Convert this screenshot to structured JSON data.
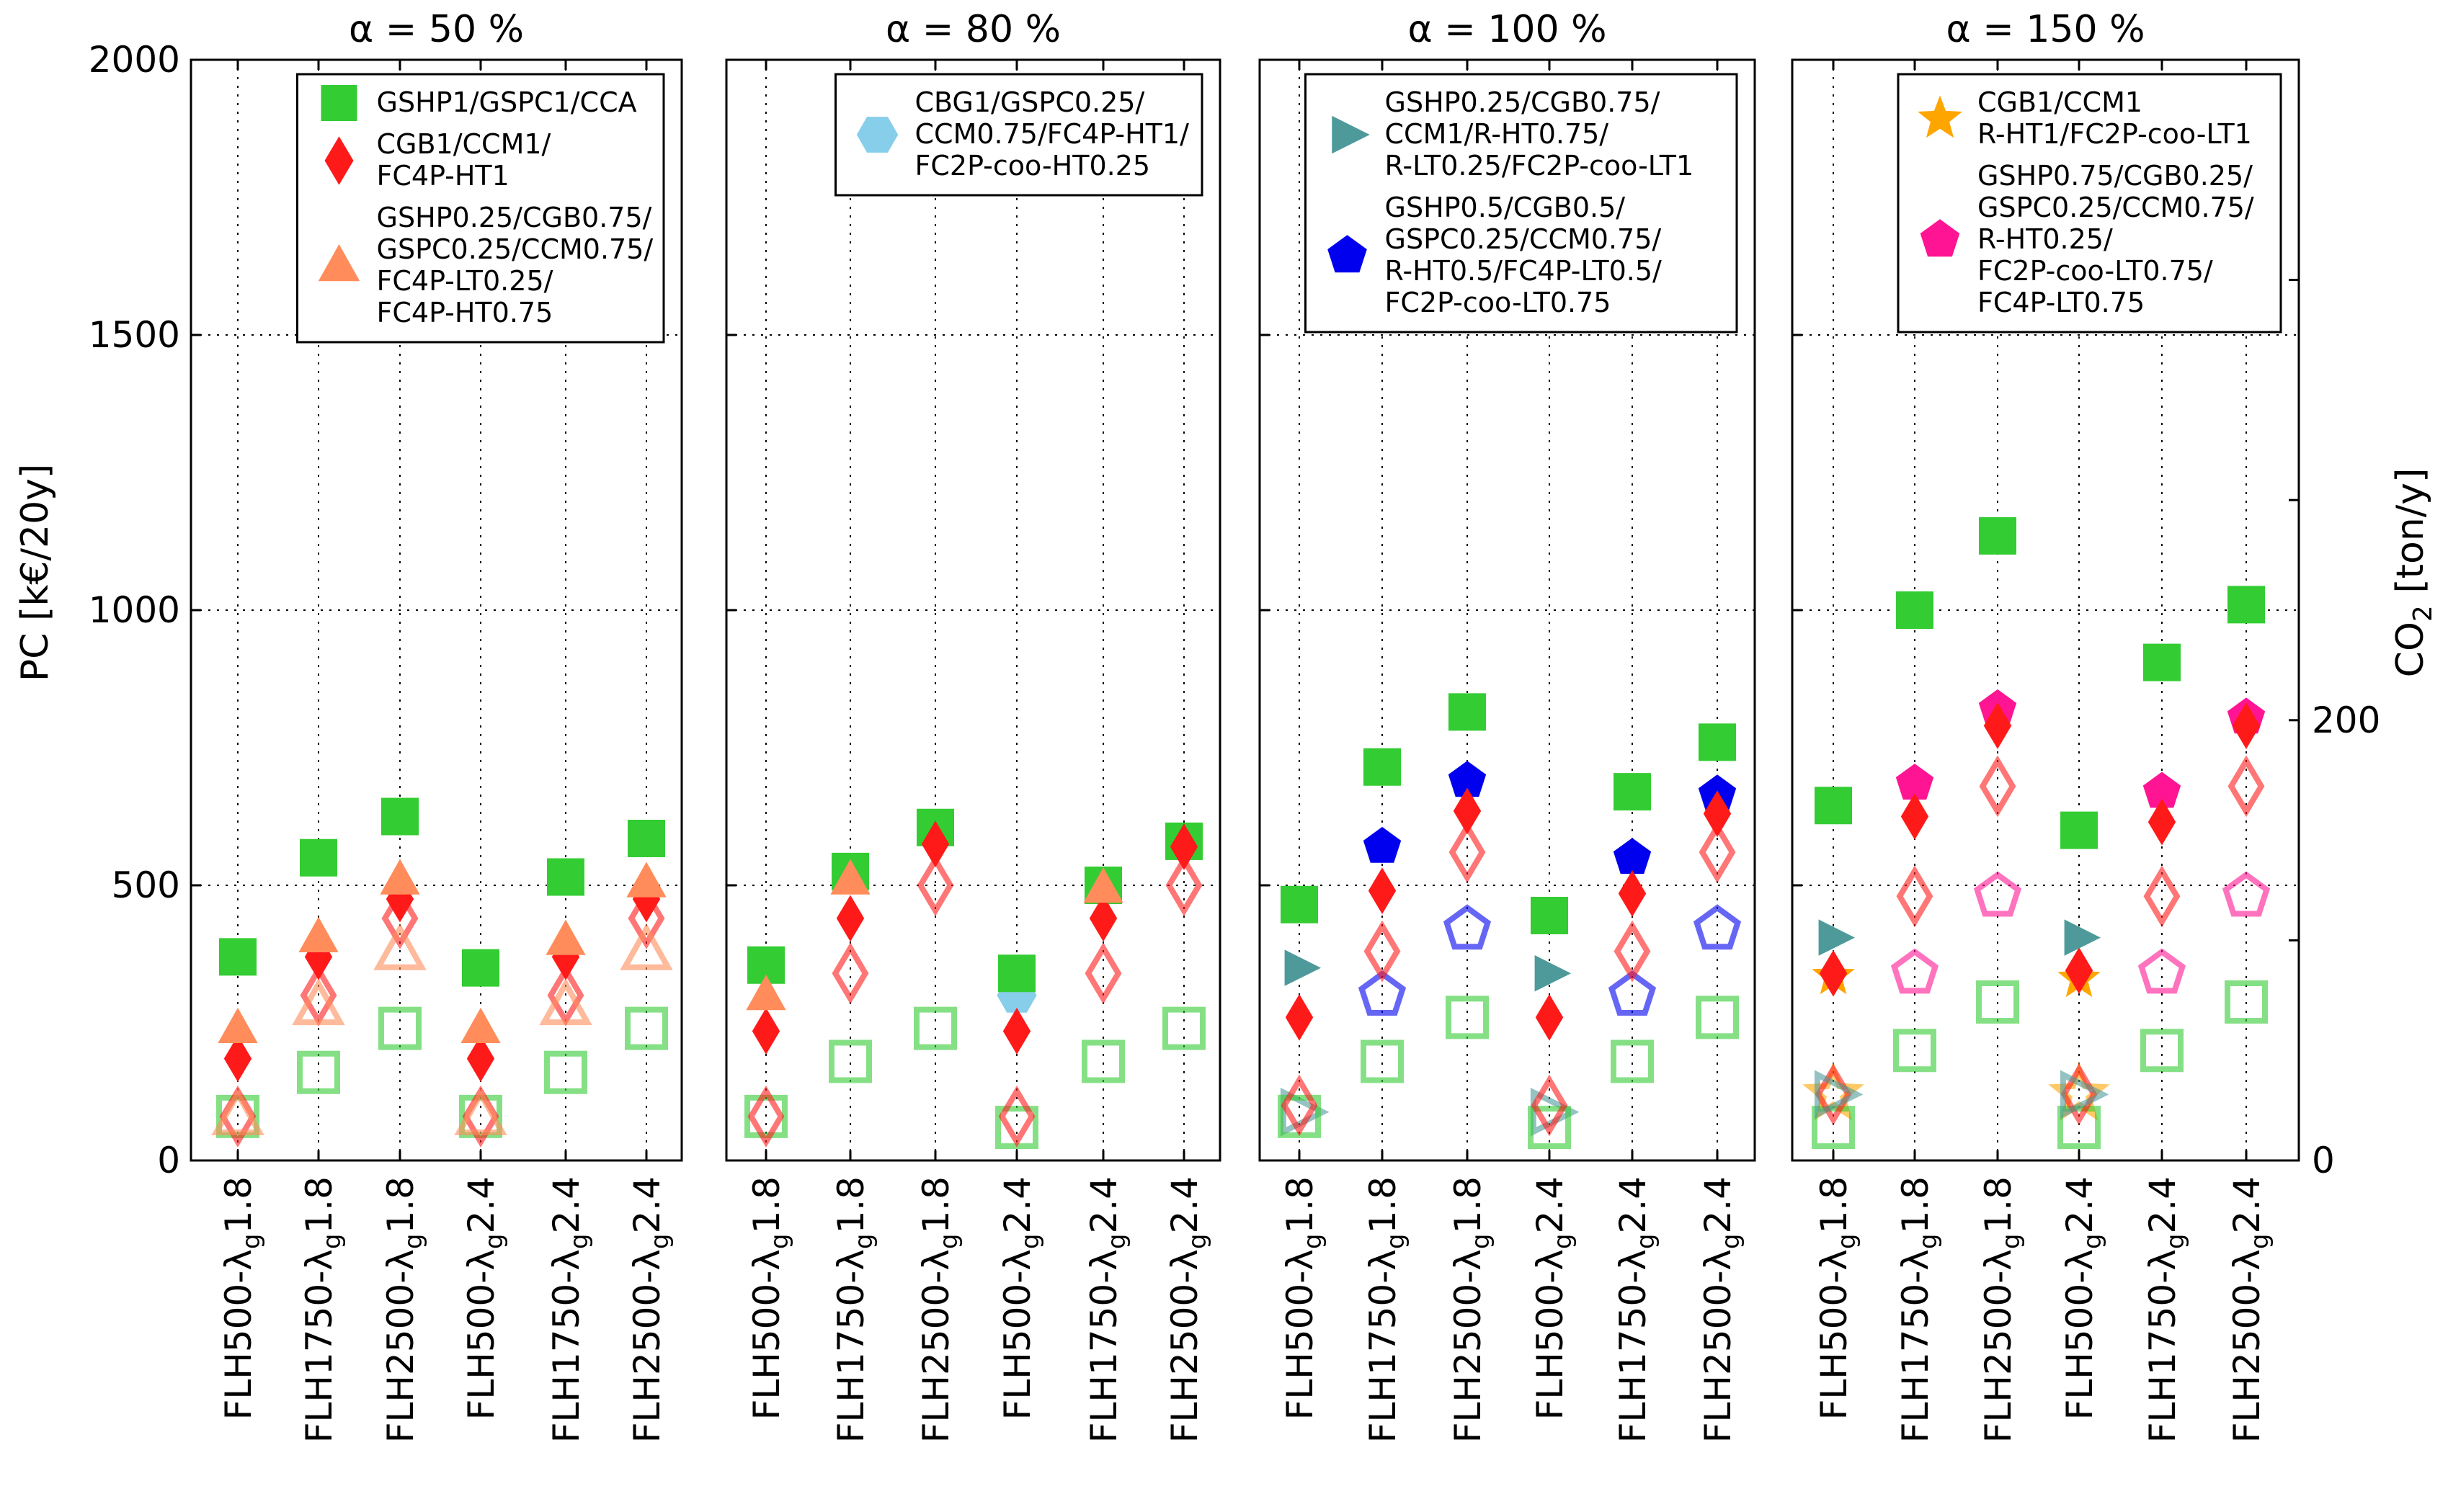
{
  "figure": {
    "y_label_left": "PC [k€/20y]",
    "y_label_right_main": "CO",
    "y_label_right_sub": "2",
    "y_label_right_unit": " [ton/y]"
  },
  "chart_data": {
    "type": "scatter",
    "categories": [
      {
        "main": "FLH500-λ",
        "sub": "g",
        "end": "1.8"
      },
      {
        "main": "FLH1750-λ",
        "sub": "g",
        "end": "1.8"
      },
      {
        "main": "FLH2500-λ",
        "sub": "g",
        "end": "1.8"
      },
      {
        "main": "FLH500-λ",
        "sub": "g",
        "end": "2.4"
      },
      {
        "main": "FLH1750-λ",
        "sub": "g",
        "end": "2.4"
      },
      {
        "main": "FLH2500-λ",
        "sub": "g",
        "end": "2.4"
      }
    ],
    "ylim_left": [
      0,
      2000
    ],
    "yticks_left": [
      0,
      500,
      1000,
      1500,
      2000
    ],
    "ylim_right": [
      0,
      500
    ],
    "yticks_right": [
      0,
      200
    ],
    "grid": true,
    "filled_markers": "PC (left axis)",
    "hollow_markers": "CO2 (right axis)",
    "panels": [
      {
        "title": "α = 50 %",
        "series": [
          {
            "legend": [
              "GSHP1/GSPC1/CCA"
            ],
            "marker": "square",
            "color": "#33cc33",
            "pc": [
              370,
              550,
              625,
              350,
              515,
              585
            ],
            "co2": [
              20,
              40,
              60,
              20,
              40,
              60
            ]
          },
          {
            "legend": [
              "CGB1/CCM1/",
              "FC4P-HT1"
            ],
            "marker": "diamond",
            "color": "#ff1a1a",
            "pc": [
              185,
              370,
              475,
              185,
              370,
              475
            ],
            "co2": [
              20,
              75,
              110,
              20,
              75,
              110
            ]
          },
          {
            "legend": [
              "GSHP0.25/CGB0.75/",
              "GSPC0.25/CCM0.75/",
              "FC4P-LT0.25/",
              "FC4P-HT0.75"
            ],
            "marker": "triangle-up",
            "color": "#ff8c5a",
            "pc": [
              240,
              405,
              510,
              240,
              400,
              505
            ],
            "co2": [
              20,
              70,
              95,
              20,
              70,
              95
            ]
          }
        ]
      },
      {
        "title": "α = 80 %",
        "series": [
          {
            "legend": [
              "CBG1/GSPC0.25/",
              "CCM0.75/FC4P-HT1/",
              "FC2P-coo-HT0.25"
            ],
            "marker": "hexagon",
            "color": "#87ceeb",
            "pc": [
              null,
              null,
              null,
              300,
              null,
              null
            ],
            "co2": [
              null,
              null,
              null,
              null,
              null,
              null
            ]
          },
          {
            "legend": null,
            "marker": "square",
            "color": "#33cc33",
            "pc": [
              355,
              525,
              605,
              340,
              500,
              580
            ],
            "co2": [
              20,
              45,
              60,
              15,
              45,
              60
            ]
          },
          {
            "legend": null,
            "marker": "diamond",
            "color": "#ff1a1a",
            "pc": [
              235,
              440,
              575,
              235,
              440,
              570
            ],
            "co2": [
              20,
              85,
              125,
              20,
              85,
              125
            ]
          },
          {
            "legend": null,
            "marker": "triangle-up",
            "color": "#ff8c5a",
            "pc": [
              300,
              510,
              null,
              null,
              495,
              null
            ],
            "co2": [
              null,
              null,
              null,
              null,
              null,
              null
            ]
          }
        ]
      },
      {
        "title": "α = 100 %",
        "series": [
          {
            "legend": [
              "GSHP0.25/CGB0.75/",
              "CCM1/R-HT0.75/",
              "R-LT0.25/FC2P-coo-LT1"
            ],
            "marker": "triangle-right",
            "color": "#4e9a9a",
            "pc": [
              350,
              null,
              null,
              340,
              null,
              null
            ],
            "co2": [
              22,
              null,
              null,
              22,
              null,
              null
            ]
          },
          {
            "legend": [
              "GSHP0.5/CGB0.5/",
              "GSPC0.25/CCM0.75/",
              "R-HT0.5/FC4P-LT0.5/",
              "FC2P-coo-LT0.75"
            ],
            "marker": "pentagon",
            "color": "#0000ee",
            "pc": [
              null,
              570,
              690,
              null,
              550,
              665
            ],
            "co2": [
              null,
              75,
              105,
              null,
              75,
              105
            ]
          },
          {
            "legend": null,
            "marker": "square",
            "color": "#33cc33",
            "pc": [
              465,
              715,
              815,
              445,
              670,
              760
            ],
            "co2": [
              20,
              45,
              65,
              15,
              45,
              65
            ]
          },
          {
            "legend": null,
            "marker": "diamond",
            "color": "#ff1a1a",
            "pc": [
              260,
              490,
              635,
              260,
              485,
              630
            ],
            "co2": [
              25,
              95,
              140,
              25,
              95,
              140
            ]
          }
        ]
      },
      {
        "title": "α = 150 %",
        "series": [
          {
            "legend": [
              "CGB1/CCM1",
              "R-HT1/FC2P-coo-LT1"
            ],
            "marker": "star",
            "color": "#ffa500",
            "pc": [
              335,
              null,
              null,
              330,
              null,
              null
            ],
            "co2": [
              30,
              null,
              null,
              30,
              null,
              null
            ]
          },
          {
            "legend": [
              "GSHP0.75/CGB0.25/",
              "GSPC0.25/CCM0.75/",
              "R-HT0.25/",
              "FC2P-coo-LT0.75/",
              "FC4P-LT0.75"
            ],
            "marker": "pentagon",
            "color": "#ff1493",
            "pc": [
              null,
              685,
              820,
              null,
              670,
              805
            ],
            "co2": [
              null,
              85,
              120,
              null,
              85,
              120
            ]
          },
          {
            "legend": null,
            "marker": "square",
            "color": "#33cc33",
            "pc": [
              645,
              1000,
              1135,
              600,
              905,
              1010
            ],
            "co2": [
              15,
              50,
              72,
              15,
              50,
              72
            ]
          },
          {
            "legend": null,
            "marker": "diamond",
            "color": "#ff1a1a",
            "pc": [
              340,
              625,
              790,
              345,
              615,
              790
            ],
            "co2": [
              30,
              120,
              170,
              30,
              120,
              170
            ]
          },
          {
            "legend": null,
            "marker": "triangle-right",
            "color": "#4e9a9a",
            "pc": [
              405,
              null,
              null,
              405,
              null,
              null
            ],
            "co2": [
              30,
              null,
              null,
              30,
              null,
              null
            ]
          }
        ]
      }
    ]
  }
}
